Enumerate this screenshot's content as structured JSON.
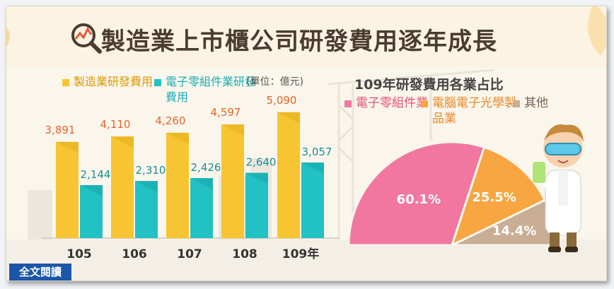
{
  "title": "製造業上市櫃公司研發費用逐年成長",
  "unit_note": "(單位：億元)",
  "read_button": "全文閱讀",
  "colors": {
    "manufacturing": "#f7c531",
    "electronic_components": "#22c1c3",
    "pie_electronic_components": "#f177a0",
    "pie_computer_electronics": "#f7a642",
    "pie_other": "#c9ad95",
    "title": "#4a3c30"
  },
  "chart_data": [
    {
      "type": "bar",
      "categories": [
        "105",
        "106",
        "107",
        "108",
        "109年"
      ],
      "series": [
        {
          "name": "製造業研發費用",
          "values": [
            3891,
            4110,
            4260,
            4597,
            5090
          ],
          "labels": [
            "3,891",
            "4,110",
            "4,260",
            "4,597",
            "5,090"
          ]
        },
        {
          "name": "電子零組件業研發費用",
          "values": [
            2144,
            2310,
            2426,
            2640,
            3057
          ],
          "labels": [
            "2,144",
            "2,310",
            "2,426",
            "2,640",
            "3,057"
          ]
        }
      ],
      "ylim": [
        0,
        6000
      ],
      "grid": false,
      "legend": "top-left"
    },
    {
      "type": "pie",
      "title": "109年研發費用各業占比",
      "slices": [
        {
          "name": "電子零組件業",
          "value": 60.1,
          "label": "60.1%"
        },
        {
          "name": "電腦電子光學製品業",
          "value": 25.5,
          "label": "25.5%"
        },
        {
          "name": "其他",
          "value": 14.4,
          "label": "14.4%"
        }
      ],
      "layout": "half-donut",
      "legend": "top"
    }
  ]
}
